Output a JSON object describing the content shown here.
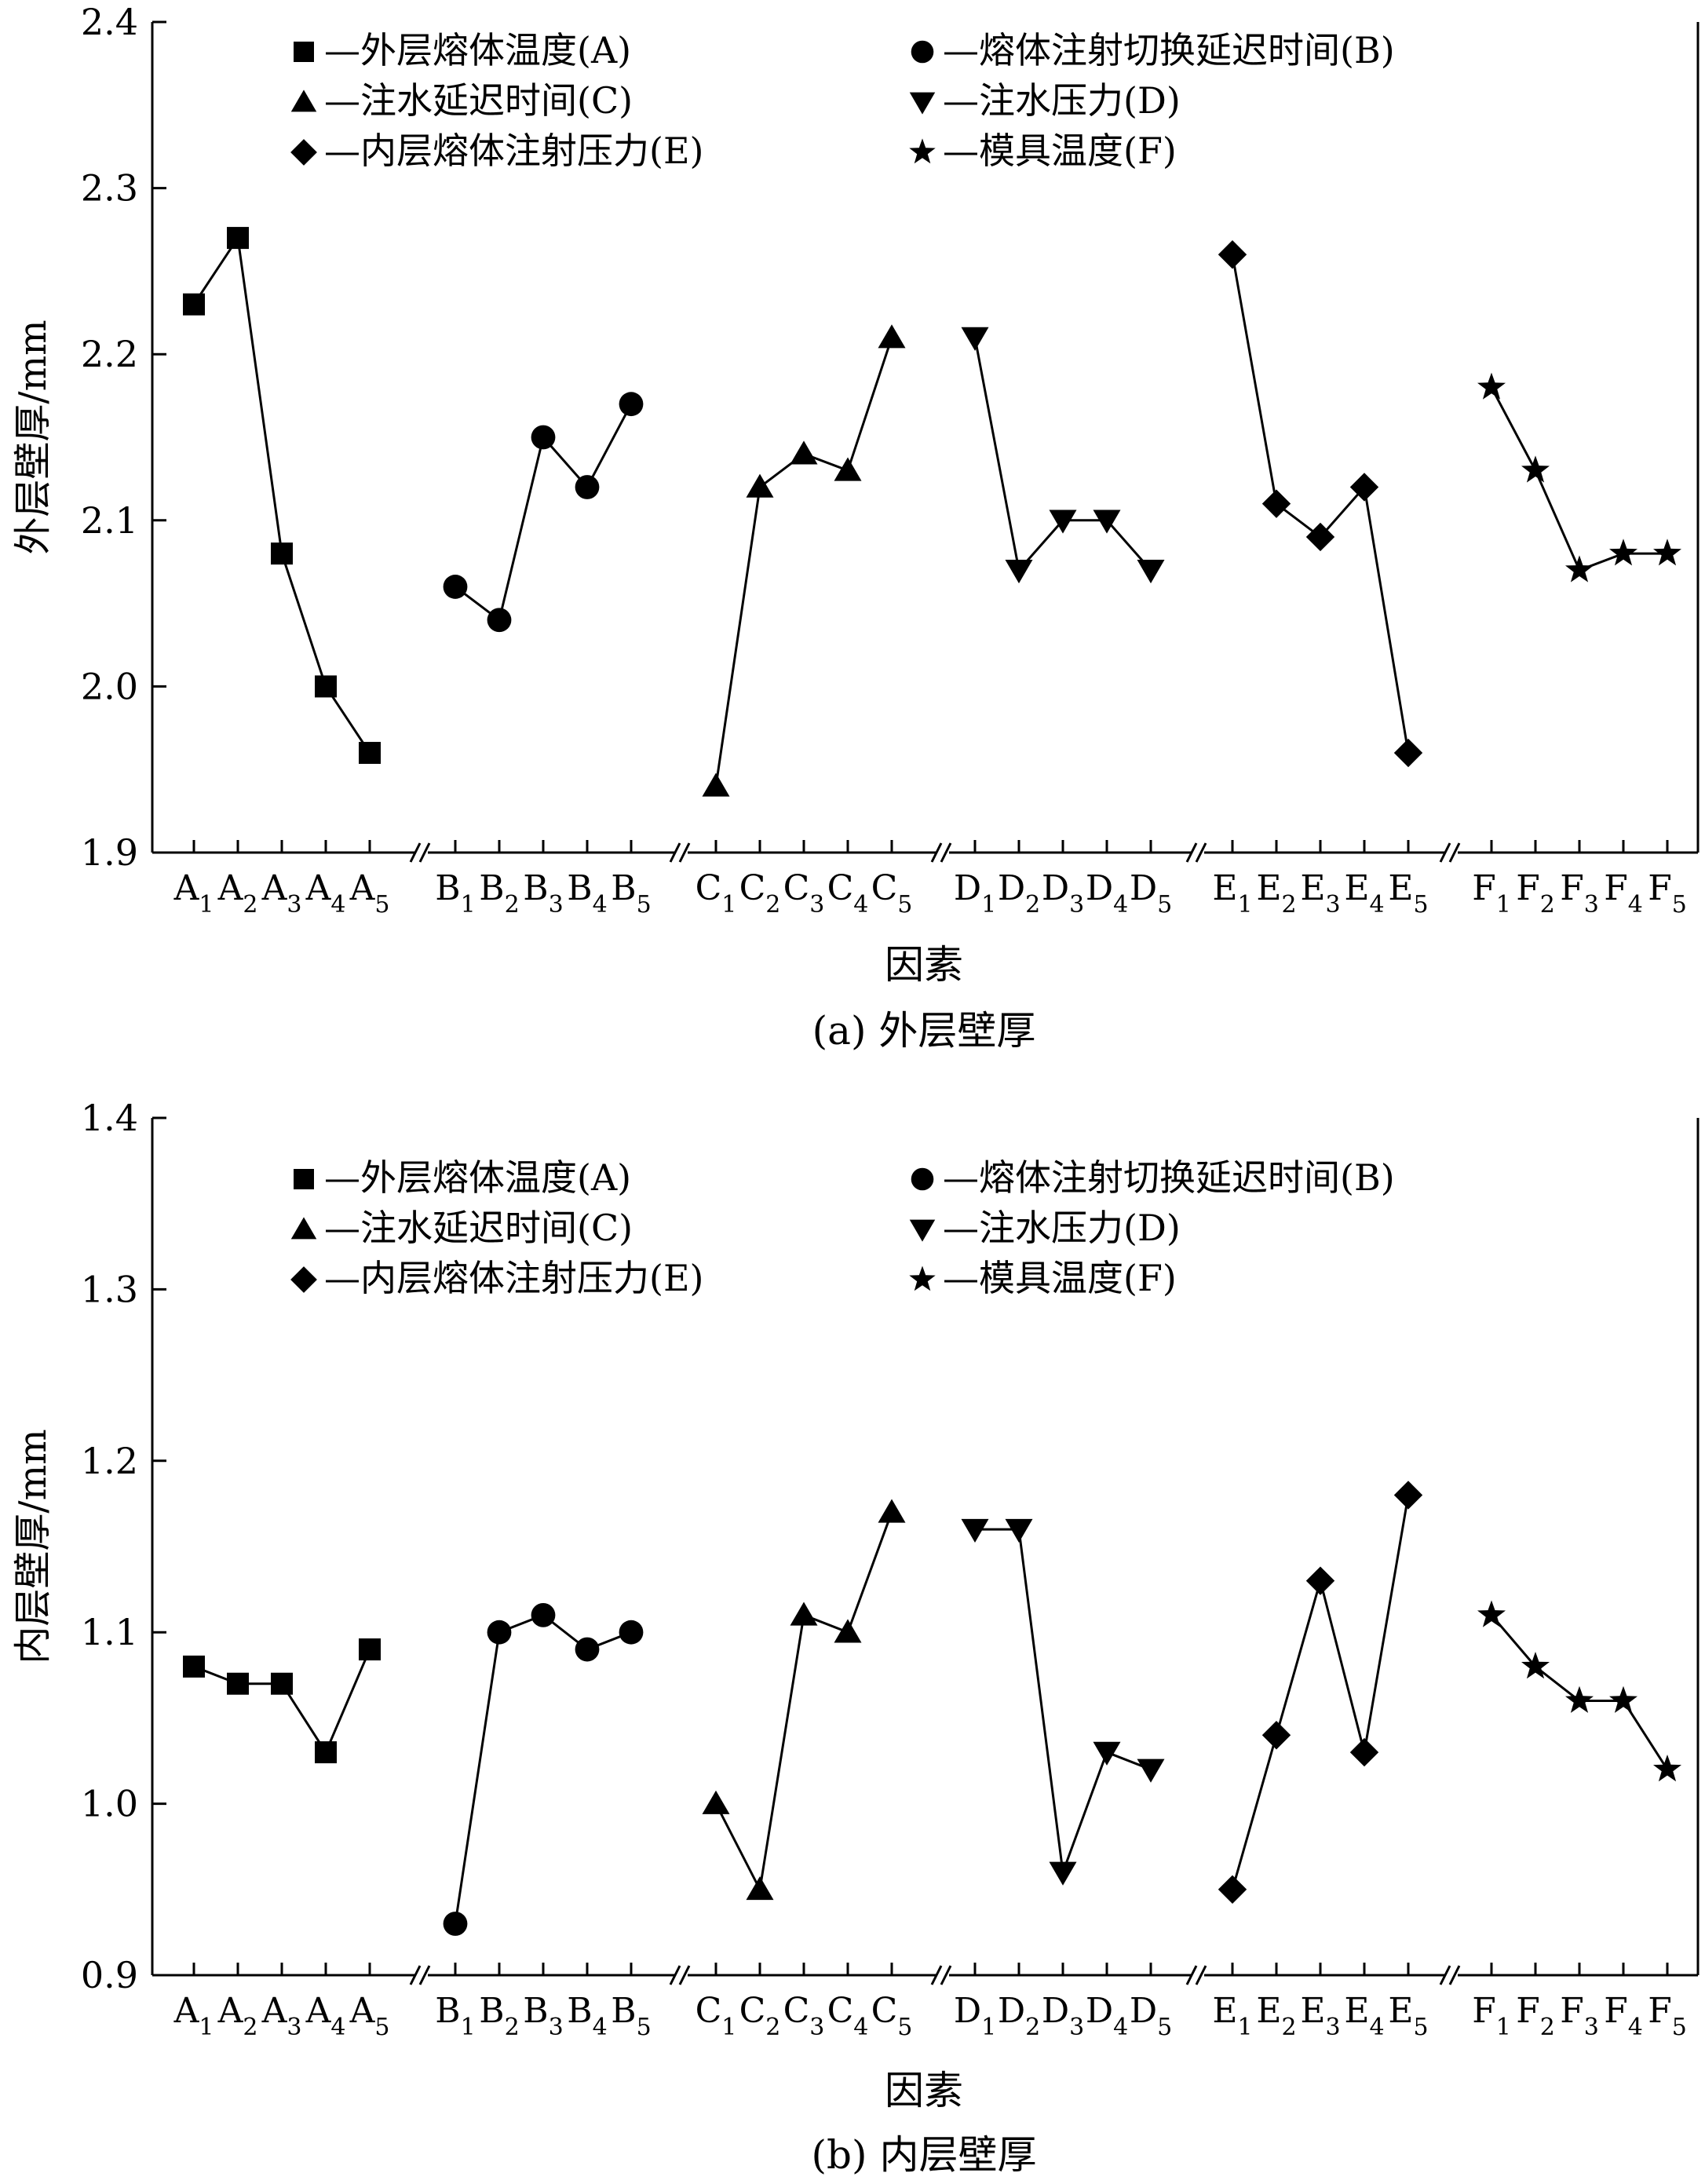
{
  "panel_captions": [
    "(a) 外层壁厚",
    "(b) 内层壁厚"
  ],
  "legend": [
    {
      "marker": "square",
      "label": "—外层熔体温度(A)"
    },
    {
      "marker": "circle",
      "label": "—熔体注射切换延迟时间(B)"
    },
    {
      "marker": "triangle-up",
      "label": "—注水延迟时间(C)"
    },
    {
      "marker": "triangle-down",
      "label": "—注水压力(D)"
    },
    {
      "marker": "diamond",
      "label": "—内层熔体注射压力(E)"
    },
    {
      "marker": "star",
      "label": "—模具温度(F)"
    }
  ],
  "chart_data": [
    {
      "type": "line",
      "title": "",
      "xlabel": "因素",
      "ylabel": "外层壁厚/mm",
      "ylim": [
        1.9,
        2.4
      ],
      "yticks": [
        "1.9",
        "2.0",
        "2.1",
        "2.2",
        "2.3",
        "2.4"
      ],
      "x_axis_breaks": true,
      "legend_position": "top",
      "series": [
        {
          "name": "外层熔体温度(A)",
          "marker": "square",
          "letter": "A",
          "categories": [
            "A1",
            "A2",
            "A3",
            "A4",
            "A5"
          ],
          "values": [
            2.23,
            2.27,
            2.08,
            2.0,
            1.96
          ]
        },
        {
          "name": "熔体注射切换延迟时间(B)",
          "marker": "circle",
          "letter": "B",
          "categories": [
            "B1",
            "B2",
            "B3",
            "B4",
            "B5"
          ],
          "values": [
            2.06,
            2.04,
            2.15,
            2.12,
            2.17
          ]
        },
        {
          "name": "注水延迟时间(C)",
          "marker": "triangle-up",
          "letter": "C",
          "categories": [
            "C1",
            "C2",
            "C3",
            "C4",
            "C5"
          ],
          "values": [
            1.94,
            2.12,
            2.14,
            2.13,
            2.21
          ]
        },
        {
          "name": "注水压力(D)",
          "marker": "triangle-down",
          "letter": "D",
          "categories": [
            "D1",
            "D2",
            "D3",
            "D4",
            "D5"
          ],
          "values": [
            2.21,
            2.07,
            2.1,
            2.1,
            2.07
          ]
        },
        {
          "name": "内层熔体注射压力(E)",
          "marker": "diamond",
          "letter": "E",
          "categories": [
            "E1",
            "E2",
            "E3",
            "E4",
            "E5"
          ],
          "values": [
            2.26,
            2.11,
            2.09,
            2.12,
            1.96
          ]
        },
        {
          "name": "模具温度(F)",
          "marker": "star",
          "letter": "F",
          "categories": [
            "F1",
            "F2",
            "F3",
            "F4",
            "F5"
          ],
          "values": [
            2.18,
            2.13,
            2.07,
            2.08,
            2.08
          ]
        }
      ]
    },
    {
      "type": "line",
      "title": "",
      "xlabel": "因素",
      "ylabel": "内层壁厚/mm",
      "ylim": [
        0.9,
        1.4
      ],
      "yticks": [
        "0.9",
        "1.0",
        "1.1",
        "1.2",
        "1.3",
        "1.4"
      ],
      "x_axis_breaks": true,
      "legend_position": "top",
      "series": [
        {
          "name": "外层熔体温度(A)",
          "marker": "square",
          "letter": "A",
          "categories": [
            "A1",
            "A2",
            "A3",
            "A4",
            "A5"
          ],
          "values": [
            1.08,
            1.07,
            1.07,
            1.03,
            1.09
          ]
        },
        {
          "name": "熔体注射切换延迟时间(B)",
          "marker": "circle",
          "letter": "B",
          "categories": [
            "B1",
            "B2",
            "B3",
            "B4",
            "B5"
          ],
          "values": [
            0.93,
            1.1,
            1.11,
            1.09,
            1.1
          ]
        },
        {
          "name": "注水延迟时间(C)",
          "marker": "triangle-up",
          "letter": "C",
          "categories": [
            "C1",
            "C2",
            "C3",
            "C4",
            "C5"
          ],
          "values": [
            1.0,
            0.95,
            1.11,
            1.1,
            1.17
          ]
        },
        {
          "name": "注水压力(D)",
          "marker": "triangle-down",
          "letter": "D",
          "categories": [
            "D1",
            "D2",
            "D3",
            "D4",
            "D5"
          ],
          "values": [
            1.16,
            1.16,
            0.96,
            1.03,
            1.02
          ]
        },
        {
          "name": "内层熔体注射压力(E)",
          "marker": "diamond",
          "letter": "E",
          "categories": [
            "E1",
            "E2",
            "E3",
            "E4",
            "E5"
          ],
          "values": [
            0.95,
            1.04,
            1.13,
            1.03,
            1.18
          ]
        },
        {
          "name": "模具温度(F)",
          "marker": "star",
          "letter": "F",
          "categories": [
            "F1",
            "F2",
            "F3",
            "F4",
            "F5"
          ],
          "values": [
            1.11,
            1.08,
            1.06,
            1.06,
            1.02
          ]
        }
      ]
    }
  ]
}
